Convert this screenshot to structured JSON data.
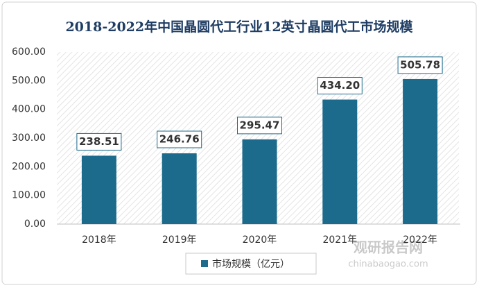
{
  "chart_data": {
    "type": "bar",
    "title": "2018-2022年中国晶圆代工行业12英寸晶圆代工市场规模",
    "categories": [
      "2018年",
      "2019年",
      "2020年",
      "2021年",
      "2022年"
    ],
    "series": [
      {
        "name": "市场规模（亿元）",
        "color": "#1c6a8c",
        "values": [
          238.51,
          246.76,
          295.47,
          434.2,
          505.78
        ],
        "value_labels": [
          "238.51",
          "246.76",
          "295.47",
          "434.20",
          "505.78"
        ]
      }
    ],
    "ylim": [
      0,
      600
    ],
    "yticks": [
      {
        "value": 0,
        "label": "0.00"
      },
      {
        "value": 100,
        "label": "100.00"
      },
      {
        "value": 200,
        "label": "200.00"
      },
      {
        "value": 300,
        "label": "300.00"
      },
      {
        "value": 400,
        "label": "400.00"
      },
      {
        "value": 500,
        "label": "500.00"
      },
      {
        "value": 600,
        "label": "600.00"
      }
    ],
    "legend": "bottom",
    "watermark": {
      "name": "观研报告网",
      "url": "chinabaogao.com"
    }
  }
}
